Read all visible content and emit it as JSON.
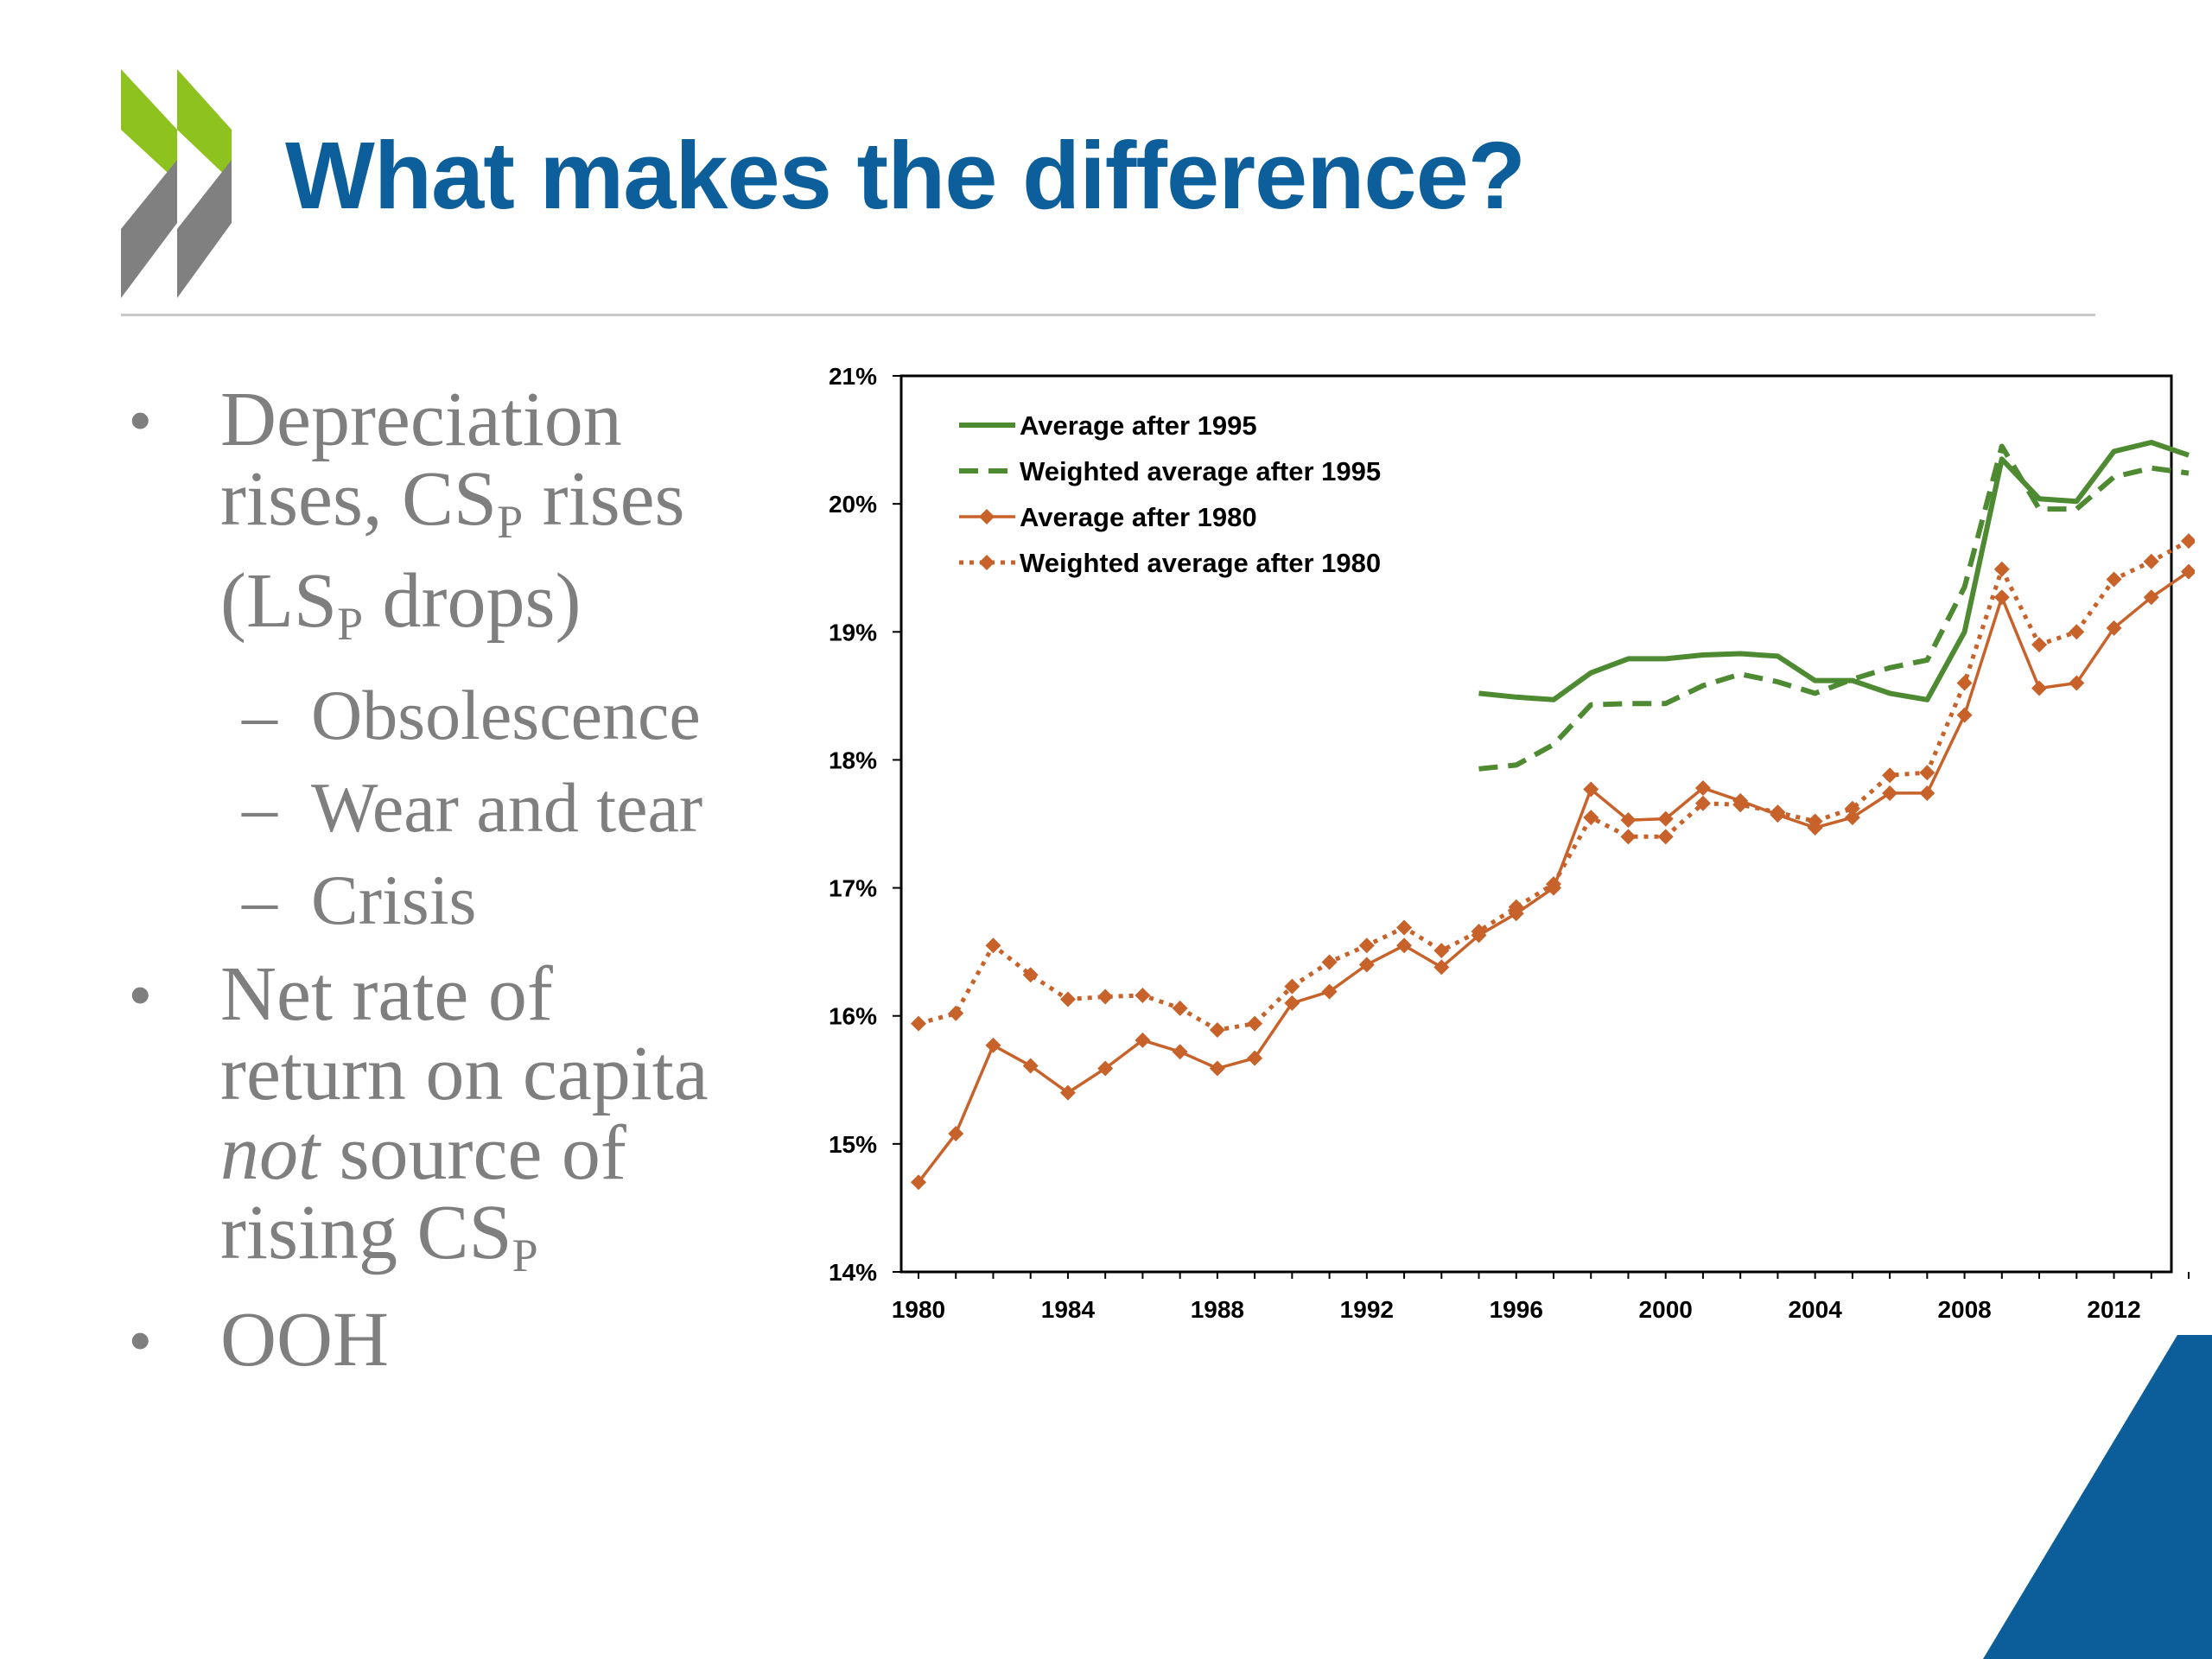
{
  "title": "What makes the difference?",
  "colors": {
    "title": "#0d5f9b",
    "logo_green": "#8dc21f",
    "logo_gray": "#808080",
    "corner_blue": "#0b5e99",
    "series_green": "#4e8a32",
    "series_orange": "#c8622b",
    "bullet_text": "#7f7f7f"
  },
  "bullets": {
    "b1": {
      "l1": "Depreciation",
      "l2a": "rises, CS",
      "l2s": "P",
      "l2b": " rises",
      "l3a": "(LS",
      "l3s": "P",
      "l3b": " drops)"
    },
    "sub1": "Obsolescence",
    "sub2": "Wear and tear",
    "sub3": "Crisis",
    "dash": "–",
    "b2": {
      "l1": "Net rate of",
      "l2": "return on capita",
      "l3em": "not",
      "l3b": " source of",
      "l4a": "rising CS",
      "l4s": "P"
    },
    "b3": "OOH",
    "bullet_symbol": "•"
  },
  "chart_data": {
    "type": "line",
    "xlim": [
      1980,
      2014
    ],
    "ylim": [
      14,
      21
    ],
    "x_ticks": [
      "1980",
      "1984",
      "1988",
      "1992",
      "1996",
      "2000",
      "2004",
      "2008",
      "2012"
    ],
    "y_ticks": [
      "14%",
      "15%",
      "16%",
      "17%",
      "18%",
      "19%",
      "20%",
      "21%"
    ],
    "legend_position": "top-left",
    "grid": false,
    "series": [
      {
        "name": "Average after 1995",
        "color": "#4e8a32",
        "style": "solid",
        "marker": "none",
        "x": [
          1995,
          1996,
          1997,
          1998,
          1999,
          2000,
          2001,
          2002,
          2003,
          2004,
          2005,
          2006,
          2007,
          2008,
          2009,
          2010,
          2011,
          2012,
          2013,
          2014
        ],
        "y": [
          18.52,
          18.49,
          18.47,
          18.68,
          18.79,
          18.79,
          18.82,
          18.83,
          18.81,
          18.62,
          18.62,
          18.52,
          18.47,
          19.0,
          20.35,
          20.04,
          20.02,
          20.41,
          20.48,
          20.38
        ]
      },
      {
        "name": "Weighted average after 1995",
        "color": "#4e8a32",
        "style": "dashed",
        "marker": "none",
        "x": [
          1995,
          1996,
          1997,
          1998,
          1999,
          2000,
          2001,
          2002,
          2003,
          2004,
          2005,
          2006,
          2007,
          2008,
          2009,
          2010,
          2011,
          2012,
          2013,
          2014
        ],
        "y": [
          17.93,
          17.96,
          18.12,
          18.43,
          18.44,
          18.44,
          18.58,
          18.67,
          18.61,
          18.52,
          18.63,
          18.72,
          18.78,
          19.35,
          20.45,
          19.96,
          19.96,
          20.21,
          20.28,
          20.24
        ]
      },
      {
        "name": "Average after 1980",
        "color": "#c8622b",
        "style": "solid",
        "marker": "diamond",
        "x": [
          1980,
          1981,
          1982,
          1983,
          1984,
          1985,
          1986,
          1987,
          1988,
          1989,
          1990,
          1991,
          1992,
          1993,
          1994,
          1995,
          1996,
          1997,
          1998,
          1999,
          2000,
          2001,
          2002,
          2003,
          2004,
          2005,
          2006,
          2007,
          2008,
          2009,
          2010,
          2011,
          2012,
          2013,
          2014
        ],
        "y": [
          14.7,
          15.08,
          15.77,
          15.61,
          15.4,
          15.59,
          15.81,
          15.72,
          15.59,
          15.67,
          16.1,
          16.19,
          16.4,
          16.55,
          16.38,
          16.63,
          16.8,
          17.0,
          17.77,
          17.53,
          17.54,
          17.78,
          17.68,
          17.57,
          17.47,
          17.55,
          17.74,
          17.74,
          18.35,
          19.27,
          18.56,
          18.6,
          19.03,
          19.27,
          19.47
        ]
      },
      {
        "name": "Weighted average after 1980",
        "color": "#c8622b",
        "style": "dotted",
        "marker": "diamond",
        "x": [
          1980,
          1981,
          1982,
          1983,
          1984,
          1985,
          1986,
          1987,
          1988,
          1989,
          1990,
          1991,
          1992,
          1993,
          1994,
          1995,
          1996,
          1997,
          1998,
          1999,
          2000,
          2001,
          2002,
          2003,
          2004,
          2005,
          2006,
          2007,
          2008,
          2009,
          2010,
          2011,
          2012,
          2013,
          2014
        ],
        "y": [
          15.94,
          16.02,
          16.55,
          16.32,
          16.13,
          16.15,
          16.16,
          16.06,
          15.89,
          15.94,
          16.23,
          16.42,
          16.55,
          16.69,
          16.51,
          16.66,
          16.85,
          17.03,
          17.55,
          17.4,
          17.4,
          17.66,
          17.65,
          17.59,
          17.52,
          17.62,
          17.88,
          17.9,
          18.6,
          19.49,
          18.9,
          19.0,
          19.41,
          19.55,
          19.71
        ]
      }
    ]
  }
}
